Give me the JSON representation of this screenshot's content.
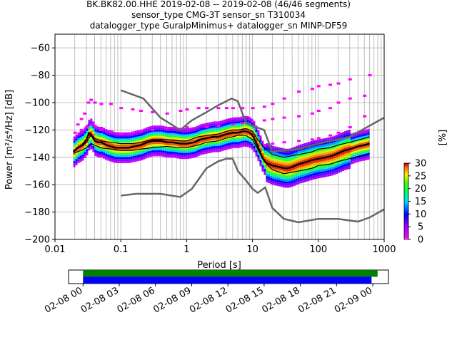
{
  "chart_data": {
    "type": "heatmap",
    "title_lines": [
      "BK.BK82.00.HHE   2019-02-08 -- 2019-02-08  (46/46 segments)",
      "sensor_type CMG-3T sensor_sn T310034",
      "datalogger_type GuralpMinimus+ datalogger_sn MINP-DF59"
    ],
    "xlabel": "Period [s]",
    "ylabel": "Power [m²/s⁴/Hz] [dB]",
    "x_scale": "log",
    "xlim": [
      0.01,
      1000
    ],
    "ylim": [
      -200,
      -50
    ],
    "x_ticks": [
      0.01,
      0.1,
      1,
      10,
      100,
      1000
    ],
    "x_tick_labels": [
      "0.01",
      "0.1",
      "1",
      "10",
      "100",
      "1000"
    ],
    "y_ticks": [
      -60,
      -80,
      -100,
      -120,
      -140,
      -160,
      -180,
      -200
    ],
    "y_tick_labels": [
      "−60",
      "−80",
      "−100",
      "−120",
      "−140",
      "−160",
      "−180",
      "−200"
    ],
    "grid": true,
    "colorbar": {
      "label": "[%]",
      "range": [
        0,
        30
      ],
      "ticks": [
        0,
        5,
        10,
        15,
        20,
        25,
        30
      ],
      "tick_labels": [
        "0",
        "5",
        "10",
        "15",
        "20",
        "25",
        "30"
      ]
    },
    "mean_curve": {
      "period": [
        0.019,
        0.022,
        0.026,
        0.03,
        0.033,
        0.036,
        0.04,
        0.045,
        0.05,
        0.06,
        0.07,
        0.08,
        0.1,
        0.13,
        0.16,
        0.2,
        0.25,
        0.3,
        0.4,
        0.5,
        0.6,
        0.8,
        1.0,
        1.3,
        1.6,
        2,
        2.5,
        3,
        4,
        5,
        6,
        7,
        8,
        9,
        10,
        11,
        12,
        14,
        16,
        20,
        25,
        30,
        35,
        40,
        50,
        60,
        80,
        100,
        130,
        160,
        200,
        250,
        300,
        400,
        500,
        600
      ],
      "power": [
        -136,
        -133,
        -131,
        -127,
        -122,
        -124,
        -128,
        -129,
        -129,
        -131,
        -132,
        -133,
        -133,
        -133,
        -132,
        -131,
        -129,
        -128,
        -128,
        -129,
        -129,
        -130,
        -130,
        -129,
        -127,
        -126,
        -125,
        -125,
        -123,
        -122,
        -122,
        -121,
        -121,
        -122,
        -124,
        -128,
        -132,
        -140,
        -144,
        -146,
        -147,
        -148,
        -148,
        -147,
        -145,
        -144,
        -142,
        -141,
        -140,
        -139,
        -137,
        -135,
        -134,
        -132,
        -131,
        -130
      ]
    },
    "envelope_curves": [
      {
        "period": [
          0.019,
          0.025,
          0.03,
          0.035,
          0.04,
          0.05,
          0.07,
          0.1,
          0.15,
          0.2,
          0.3,
          0.5,
          0.8,
          1,
          1.5,
          2,
          3,
          4,
          5,
          6,
          8,
          10,
          12,
          15,
          20,
          30,
          50,
          80,
          100,
          150,
          200,
          300,
          600
        ],
        "power": [
          -135,
          -132,
          -129,
          -124,
          -126,
          -128,
          -129,
          -130,
          -130,
          -129,
          -127,
          -127,
          -128,
          -128,
          -125,
          -124,
          -123,
          -121,
          -120,
          -120,
          -119,
          -121,
          -127,
          -133,
          -138,
          -140,
          -138,
          -136,
          -134,
          -133,
          -131,
          -129,
          -125
        ]
      },
      {
        "period": [
          0.019,
          0.025,
          0.03,
          0.035,
          0.04,
          0.05,
          0.07,
          0.1,
          0.15,
          0.2,
          0.3,
          0.5,
          0.8,
          1,
          1.5,
          2,
          3,
          4,
          5,
          6,
          8,
          10,
          12,
          15,
          20,
          30,
          50,
          80,
          100,
          150,
          200,
          300,
          600
        ],
        "power": [
          -137,
          -135,
          -133,
          -130,
          -131,
          -133,
          -134,
          -135,
          -135,
          -134,
          -133,
          -132,
          -133,
          -133,
          -131,
          -129,
          -128,
          -126,
          -125,
          -124,
          -124,
          -127,
          -134,
          -143,
          -149,
          -152,
          -150,
          -148,
          -146,
          -145,
          -143,
          -141,
          -137
        ]
      }
    ],
    "reference_models": [
      {
        "period": [
          0.1,
          0.17,
          0.22,
          0.4,
          0.8,
          1.2,
          2,
          3,
          4,
          4.8,
          6,
          8,
          10,
          15,
          20,
          50,
          100,
          300,
          1000
        ],
        "power": [
          -91,
          -95,
          -97,
          -111,
          -120,
          -113,
          -107,
          -102,
          -99,
          -97,
          -99,
          -115,
          -117,
          -120,
          -136,
          -134,
          -130,
          -125,
          -111
        ]
      },
      {
        "period": [
          0.1,
          0.17,
          0.4,
          0.8,
          1.2,
          2,
          3,
          4,
          5,
          6,
          8,
          10,
          12,
          15.6,
          20,
          30,
          50,
          100,
          200,
          400,
          600,
          1000
        ],
        "power": [
          -168,
          -166.7,
          -166.7,
          -169,
          -163,
          -148,
          -143,
          -141,
          -141,
          -150,
          -157,
          -163,
          -166,
          -162,
          -177,
          -185,
          -187.5,
          -185,
          -185,
          -187,
          -184,
          -178
        ]
      }
    ],
    "scatter_series": [
      {
        "name": "",
        "period": [
          0.022,
          0.025,
          0.028,
          0.032,
          0.035,
          0.04,
          0.05,
          0.07,
          0.1,
          0.15,
          0.2,
          0.3,
          0.5,
          0.8,
          1,
          1.5,
          2,
          3,
          4,
          5,
          7,
          10,
          15,
          20,
          30,
          50,
          80,
          100,
          150,
          200,
          300
        ],
        "power": [
          -116,
          -112,
          -108,
          -100,
          -98,
          -100,
          -101,
          -101,
          -104,
          -105,
          -106,
          -107,
          -108,
          -106,
          -105,
          -104,
          -104,
          -104,
          -104,
          -104,
          -104,
          -104,
          -103,
          -101,
          -97,
          -92,
          -90,
          -88,
          -87,
          -86,
          -83
        ]
      },
      {
        "name": "",
        "period": [
          0.02,
          0.025,
          0.03,
          0.035,
          0.04,
          0.05,
          0.07,
          0.1,
          0.15,
          0.2,
          0.3,
          0.5,
          1,
          2,
          3,
          5,
          7,
          10,
          15,
          20,
          30,
          50,
          80,
          100,
          150,
          200,
          300,
          500
        ],
        "power": [
          -122,
          -120,
          -118,
          -116,
          -117,
          -120,
          -121,
          -123,
          -122,
          -121,
          -120,
          -119,
          -118,
          -118,
          -117,
          -116,
          -115,
          -114,
          -113,
          -112,
          -111,
          -110,
          -108,
          -106,
          -104,
          -100,
          -97,
          -95
        ]
      },
      {
        "name": "",
        "period": [
          15,
          20,
          30,
          50,
          80,
          100,
          150,
          200,
          300,
          500,
          600
        ],
        "power": [
          -131,
          -130,
          -129,
          -128,
          -127,
          -126,
          -124,
          -122,
          -118,
          -110,
          -80
        ]
      }
    ],
    "availability_bar": {
      "x_tick_labels": [
        "02-08 00",
        "02-08 03",
        "02-08 06",
        "02-08 09",
        "02-08 12",
        "02-08 15",
        "02-08 18",
        "02-08 21",
        "02-09 00"
      ],
      "x_ticks_hours": [
        0,
        3,
        6,
        9,
        12,
        15,
        18,
        21,
        24
      ],
      "xlim_hours": [
        -1.2,
        25.3
      ],
      "segments": [
        {
          "start_hour": 0,
          "end_hour": 24.4,
          "color": "#008000"
        },
        {
          "start_hour": 0,
          "end_hour": 23.9,
          "color": "#0000ff"
        }
      ]
    }
  }
}
